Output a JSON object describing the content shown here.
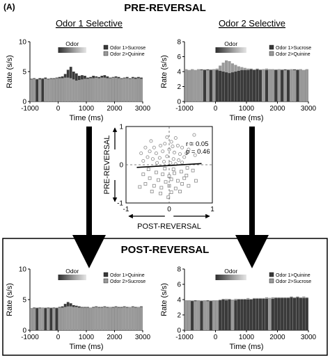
{
  "figure": {
    "panel_label": "(A)",
    "pre_title": "PRE-REVERSAL",
    "post_title": "POST-REVERSAL",
    "col1_title": "Odor 1 Selective",
    "col2_title": "Odor 2 Selective"
  },
  "colors": {
    "bar_dark": "#3a3a3a",
    "bar_light": "#9a9a9a",
    "scatter_circle": "#888888",
    "scatter_square": "#888888",
    "arrow": "#000000",
    "box_border": "#000000"
  },
  "chart_data": [
    {
      "id": "pre-odor1",
      "type": "bar",
      "xlabel": "Time (ms)",
      "ylabel": "Rate (s/s)",
      "xlim": [
        -1000,
        3000
      ],
      "ylim": [
        0,
        10
      ],
      "xticks": [
        "-1000",
        "0",
        "1000",
        "2000",
        "3000"
      ],
      "yticks": [
        "0",
        "5",
        "10"
      ],
      "odor_label": "Odor",
      "odor_window": [
        0,
        1000
      ],
      "legend": [
        "Odor 1>Sucrose",
        "Odor 2>Quinine"
      ],
      "bin_width_ms": 100,
      "series": [
        {
          "name": "Odor 1>Sucrose",
          "values": [
            3.8,
            3.9,
            3.7,
            3.9,
            3.8,
            4.0,
            3.8,
            3.9,
            3.9,
            4.0,
            4.1,
            4.2,
            4.6,
            5.3,
            5.8,
            5.0,
            4.7,
            4.3,
            4.4,
            4.3,
            4.0,
            4.1,
            4.3,
            4.2,
            4.1,
            4.3,
            4.4,
            4.2,
            4.0,
            4.1,
            4.2,
            4.1,
            3.9,
            4.0,
            4.1,
            3.9,
            4.1,
            4.0,
            4.1,
            4.0
          ]
        },
        {
          "name": "Odor 2>Quinine",
          "values": [
            3.7,
            3.8,
            3.8,
            3.7,
            3.9,
            3.8,
            3.7,
            3.8,
            3.8,
            3.9,
            3.9,
            3.9,
            4.0,
            4.0,
            3.9,
            3.7,
            3.5,
            3.6,
            3.7,
            3.8,
            3.8,
            3.9,
            3.9,
            4.0,
            3.9,
            4.0,
            4.0,
            3.9,
            3.9,
            4.0,
            4.0,
            3.9,
            3.8,
            3.9,
            3.9,
            3.8,
            3.9,
            3.8,
            3.9,
            3.8
          ]
        }
      ]
    },
    {
      "id": "pre-odor2",
      "type": "bar",
      "xlabel": "Time (ms)",
      "ylabel": "Rate (s/s)",
      "xlim": [
        -1000,
        3000
      ],
      "ylim": [
        0,
        8
      ],
      "xticks": [
        "-1000",
        "0",
        "1000",
        "2000",
        "3000"
      ],
      "yticks": [
        "0",
        "2",
        "4",
        "6",
        "8"
      ],
      "odor_label": "Odor",
      "odor_window": [
        0,
        1000
      ],
      "legend": [
        "Odor 1>Sucrose",
        "Odor 2>Quinine"
      ],
      "bin_width_ms": 100,
      "series": [
        {
          "name": "Odor 1>Sucrose",
          "values": [
            4.3,
            4.2,
            4.3,
            4.2,
            4.3,
            4.3,
            4.2,
            4.3,
            4.2,
            4.3,
            4.2,
            4.1,
            4.0,
            3.9,
            3.8,
            3.9,
            4.0,
            4.1,
            4.2,
            4.2,
            4.2,
            4.3,
            4.2,
            4.3,
            4.2,
            4.3,
            4.2,
            4.3,
            4.3,
            4.2,
            4.3,
            4.2,
            4.3,
            4.2,
            4.3,
            4.3,
            4.2,
            4.3,
            4.2,
            4.3
          ]
        },
        {
          "name": "Odor 2>Quinine",
          "values": [
            4.3,
            4.2,
            4.3,
            4.2,
            4.3,
            4.2,
            4.3,
            4.2,
            4.3,
            4.3,
            4.4,
            4.8,
            5.2,
            5.5,
            5.4,
            5.1,
            4.9,
            4.7,
            4.6,
            4.5,
            4.4,
            4.4,
            4.3,
            4.4,
            4.3,
            4.3,
            4.4,
            4.3,
            4.3,
            4.3,
            4.3,
            4.3,
            4.2,
            4.3,
            4.3,
            4.2,
            4.3,
            4.3,
            4.2,
            4.3
          ]
        }
      ]
    },
    {
      "id": "scatter",
      "type": "scatter",
      "xlabel": "POST-REVERSAL",
      "ylabel": "PRE-REVERSAL",
      "xlim": [
        -1,
        1
      ],
      "ylim": [
        -1,
        1
      ],
      "xticks": [
        "-1",
        "0",
        "1"
      ],
      "yticks": [
        "-1",
        "0",
        "1"
      ],
      "stats": [
        "r = 0.05",
        "p = 0.46"
      ],
      "regression": {
        "x": [
          -0.75,
          0.75
        ],
        "y": [
          -0.07,
          0.03
        ]
      },
      "circles": [
        [
          -0.35,
          0.45
        ],
        [
          -0.2,
          0.5
        ],
        [
          -0.1,
          0.55
        ],
        [
          0.05,
          0.6
        ],
        [
          0.2,
          0.5
        ],
        [
          0.3,
          0.45
        ],
        [
          -0.45,
          0.35
        ],
        [
          -0.3,
          0.3
        ],
        [
          -0.15,
          0.35
        ],
        [
          0.0,
          0.4
        ],
        [
          0.12,
          0.32
        ],
        [
          0.25,
          0.28
        ],
        [
          0.4,
          0.3
        ],
        [
          -0.5,
          0.2
        ],
        [
          -0.38,
          0.15
        ],
        [
          -0.22,
          0.18
        ],
        [
          -0.05,
          0.22
        ],
        [
          0.1,
          0.15
        ],
        [
          0.22,
          0.12
        ],
        [
          0.35,
          0.2
        ],
        [
          -0.6,
          0.1
        ],
        [
          -0.28,
          0.05
        ],
        [
          -0.12,
          0.08
        ],
        [
          0.03,
          0.05
        ],
        [
          0.15,
          0.02
        ],
        [
          0.3,
          0.06
        ],
        [
          -0.42,
          0.62
        ],
        [
          0.15,
          0.7
        ],
        [
          0.5,
          0.55
        ],
        [
          -0.55,
          0.45
        ],
        [
          0.45,
          0.4
        ],
        [
          -0.05,
          0.72
        ],
        [
          0.6,
          0.25
        ],
        [
          -0.65,
          0.3
        ],
        [
          0.58,
          0.78
        ],
        [
          0.08,
          0.48
        ]
      ],
      "squares": [
        [
          -0.3,
          -0.2
        ],
        [
          -0.15,
          -0.25
        ],
        [
          0.0,
          -0.3
        ],
        [
          0.12,
          -0.22
        ],
        [
          0.28,
          -0.18
        ],
        [
          0.4,
          -0.28
        ],
        [
          -0.45,
          -0.35
        ],
        [
          -0.25,
          -0.4
        ],
        [
          -0.08,
          -0.45
        ],
        [
          0.05,
          -0.38
        ],
        [
          0.2,
          -0.42
        ],
        [
          0.35,
          -0.35
        ],
        [
          -0.55,
          -0.5
        ],
        [
          -0.35,
          -0.55
        ],
        [
          -0.18,
          -0.6
        ],
        [
          0.0,
          -0.55
        ],
        [
          0.15,
          -0.62
        ],
        [
          0.3,
          -0.5
        ],
        [
          0.45,
          -0.55
        ],
        [
          -0.4,
          -0.7
        ],
        [
          -0.2,
          -0.75
        ],
        [
          0.05,
          -0.72
        ],
        [
          0.25,
          -0.7
        ],
        [
          -0.6,
          -0.25
        ],
        [
          0.55,
          -0.15
        ],
        [
          -0.1,
          -0.1
        ],
        [
          0.1,
          -0.12
        ],
        [
          -0.48,
          -0.12
        ],
        [
          0.42,
          -0.08
        ],
        [
          -0.02,
          -0.85
        ],
        [
          0.62,
          -0.42
        ],
        [
          -0.68,
          -0.58
        ]
      ]
    },
    {
      "id": "post-odor1",
      "type": "bar",
      "xlabel": "Time (ms)",
      "ylabel": "Rate (s/s)",
      "xlim": [
        -1000,
        3000
      ],
      "ylim": [
        0,
        10
      ],
      "xticks": [
        "-1000",
        "0",
        "1000",
        "2000",
        "3000"
      ],
      "yticks": [
        "0",
        "5",
        "10"
      ],
      "odor_label": "Odor",
      "odor_window": [
        0,
        1000
      ],
      "legend": [
        "Odor 1>Quinine",
        "Odor 2>Sucrose"
      ],
      "bin_width_ms": 100,
      "series": [
        {
          "name": "Odor 1>Quinine",
          "values": [
            3.6,
            3.7,
            3.6,
            3.7,
            3.7,
            3.6,
            3.7,
            3.6,
            3.7,
            3.6,
            3.8,
            3.9,
            4.3,
            4.6,
            4.4,
            4.1,
            4.0,
            3.9,
            3.8,
            3.8,
            3.8,
            3.7,
            3.8,
            3.9,
            3.8,
            3.8,
            3.9,
            3.8,
            3.8,
            3.8,
            3.9,
            3.8,
            3.8,
            3.9,
            3.8,
            3.8,
            3.9,
            3.8,
            3.8,
            3.9
          ]
        },
        {
          "name": "Odor 2>Sucrose",
          "values": [
            3.6,
            3.6,
            3.7,
            3.6,
            3.7,
            3.7,
            3.6,
            3.7,
            3.6,
            3.7,
            3.7,
            3.7,
            3.8,
            3.9,
            3.9,
            3.8,
            3.8,
            3.7,
            3.7,
            3.7,
            3.7,
            3.7,
            3.7,
            3.8,
            3.7,
            3.7,
            3.8,
            3.7,
            3.8,
            3.7,
            3.8,
            3.7,
            3.7,
            3.8,
            3.7,
            3.8,
            3.8,
            3.7,
            3.8,
            3.8
          ]
        }
      ]
    },
    {
      "id": "post-odor2",
      "type": "bar",
      "xlabel": "Time (ms)",
      "ylabel": "Rate (s/s)",
      "xlim": [
        -1000,
        3000
      ],
      "ylim": [
        0,
        8
      ],
      "xticks": [
        "-1000",
        "0",
        "1000",
        "2000",
        "3000"
      ],
      "yticks": [
        "0",
        "2",
        "4",
        "6",
        "8"
      ],
      "odor_label": "Odor",
      "odor_window": [
        0,
        1000
      ],
      "legend": [
        "Odor 1>Quinine",
        "Odor 2>Sucrose"
      ],
      "bin_width_ms": 100,
      "series": [
        {
          "name": "Odor 1>Quinine",
          "values": [
            3.9,
            3.9,
            3.8,
            3.9,
            3.9,
            3.8,
            3.9,
            3.9,
            3.8,
            3.9,
            3.9,
            3.9,
            4.0,
            3.9,
            4.0,
            4.0,
            3.9,
            4.0,
            4.0,
            4.0,
            4.0,
            4.0,
            4.1,
            4.1,
            4.1,
            4.1,
            4.1,
            4.2,
            4.1,
            4.2,
            4.2,
            4.2,
            4.2,
            4.2,
            4.3,
            4.2,
            4.3,
            4.2,
            4.2,
            4.2
          ]
        },
        {
          "name": "Odor 2>Sucrose",
          "values": [
            3.9,
            3.9,
            3.9,
            3.8,
            3.9,
            3.9,
            3.9,
            3.8,
            3.9,
            3.9,
            3.9,
            4.0,
            4.1,
            4.1,
            4.1,
            4.0,
            4.1,
            4.1,
            4.1,
            4.1,
            4.2,
            4.1,
            4.2,
            4.2,
            4.2,
            4.2,
            4.3,
            4.2,
            4.3,
            4.3,
            4.3,
            4.3,
            4.3,
            4.3,
            4.4,
            4.3,
            4.4,
            4.3,
            4.4,
            4.3
          ]
        }
      ]
    }
  ]
}
